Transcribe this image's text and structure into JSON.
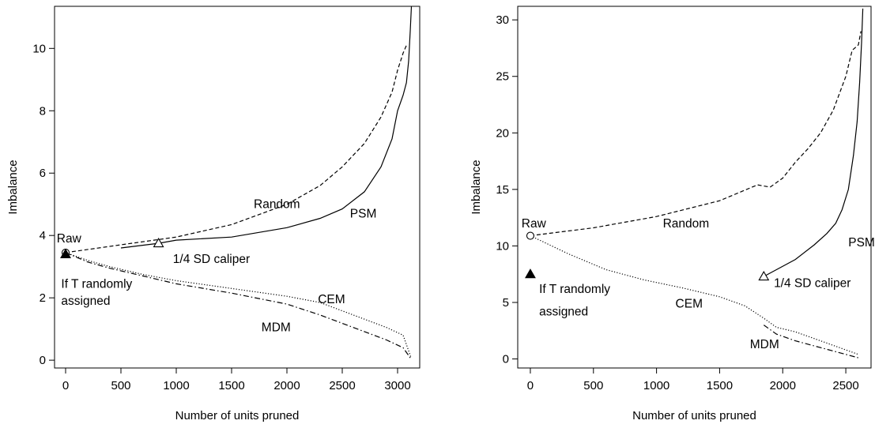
{
  "chart_data": [
    {
      "type": "line",
      "xlabel": "Number of units pruned",
      "ylabel": "Imbalance",
      "xlim": [
        -100,
        3200
      ],
      "ylim": [
        -0.25,
        11.35
      ],
      "xticks": [
        0,
        500,
        1000,
        1500,
        2000,
        2500,
        3000
      ],
      "yticks": [
        0,
        2,
        4,
        6,
        8,
        10
      ],
      "series": [
        {
          "label": "Random",
          "dash": "dashed",
          "x": [
            0,
            500,
            1000,
            1500,
            2000,
            2300,
            2500,
            2700,
            2850,
            2950,
            3000,
            3050,
            3080
          ],
          "y": [
            3.45,
            3.7,
            3.95,
            4.35,
            5.0,
            5.6,
            6.2,
            6.95,
            7.8,
            8.6,
            9.3,
            9.85,
            10.1
          ]
        },
        {
          "label": "PSM",
          "dash": "solid",
          "x": [
            500,
            840,
            1000,
            1500,
            2000,
            2300,
            2500,
            2700,
            2850,
            2950,
            3000,
            3050,
            3080,
            3100,
            3115,
            3125
          ],
          "y": [
            3.6,
            3.75,
            3.85,
            3.95,
            4.25,
            4.55,
            4.85,
            5.4,
            6.2,
            7.1,
            8.0,
            8.5,
            8.9,
            9.6,
            10.6,
            11.35
          ]
        },
        {
          "label": "CEM",
          "dash": "dotted",
          "x": [
            0,
            200,
            400,
            700,
            1000,
            1500,
            2000,
            2300,
            2600,
            2900,
            3050,
            3120
          ],
          "y": [
            3.45,
            3.2,
            3.0,
            2.75,
            2.55,
            2.3,
            2.05,
            1.85,
            1.45,
            1.05,
            0.8,
            0.1
          ]
        },
        {
          "label": "MDM",
          "dash": "dotdash",
          "x": [
            0,
            200,
            400,
            700,
            1000,
            1500,
            2000,
            2300,
            2600,
            2900,
            3050,
            3120
          ],
          "y": [
            3.45,
            3.15,
            2.95,
            2.7,
            2.45,
            2.15,
            1.8,
            1.45,
            1.05,
            0.65,
            0.4,
            0.05
          ]
        }
      ],
      "markers": [
        {
          "shape": "circle-open",
          "x": 0,
          "y": 3.45
        },
        {
          "shape": "triangle-filled",
          "x": 0,
          "y": 3.4
        },
        {
          "shape": "triangle-open",
          "x": 840,
          "y": 3.75
        }
      ],
      "annotations": [
        {
          "text": "Raw",
          "x": -80,
          "y": 3.9
        },
        {
          "text": "1/4 SD caliper",
          "x": 970,
          "y": 3.25
        },
        {
          "text": "If T randomly",
          "x": -40,
          "y": 2.45
        },
        {
          "text": "assigned",
          "x": -40,
          "y": 1.9
        },
        {
          "text": "Random",
          "x": 1700,
          "y": 5.0
        },
        {
          "text": "PSM",
          "x": 2570,
          "y": 4.7
        },
        {
          "text": "CEM",
          "x": 2280,
          "y": 1.95
        },
        {
          "text": "MDM",
          "x": 1770,
          "y": 1.05
        }
      ]
    },
    {
      "type": "line",
      "xlabel": "Number of units pruned",
      "ylabel": "Imbalance",
      "xlim": [
        -100,
        2700
      ],
      "ylim": [
        -0.8,
        31.2
      ],
      "xticks": [
        0,
        500,
        1000,
        1500,
        2000,
        2500
      ],
      "yticks": [
        0,
        5,
        10,
        15,
        20,
        25,
        30
      ],
      "series": [
        {
          "label": "Random",
          "dash": "dashed",
          "x": [
            0,
            500,
            1000,
            1500,
            1800,
            1900,
            2000,
            2100,
            2200,
            2300,
            2400,
            2500,
            2550,
            2600,
            2620
          ],
          "y": [
            10.9,
            11.6,
            12.6,
            14.0,
            15.4,
            15.2,
            16.0,
            17.4,
            18.6,
            20.0,
            22.0,
            25.0,
            27.3,
            27.8,
            29.0
          ]
        },
        {
          "label": "PSM",
          "dash": "solid",
          "x": [
            1850,
            1950,
            2100,
            2250,
            2350,
            2420,
            2470,
            2520,
            2560,
            2590,
            2610,
            2625,
            2635
          ],
          "y": [
            7.3,
            7.9,
            8.8,
            10.1,
            11.1,
            12.0,
            13.2,
            15.0,
            18.0,
            21.0,
            24.5,
            28.0,
            31.0
          ]
        },
        {
          "label": "CEM",
          "dash": "dotted",
          "x": [
            0,
            300,
            600,
            900,
            1200,
            1500,
            1700,
            1850,
            1950,
            2100,
            2300,
            2500,
            2600
          ],
          "y": [
            10.9,
            9.3,
            7.9,
            7.0,
            6.3,
            5.5,
            4.7,
            3.6,
            2.8,
            2.4,
            1.6,
            0.8,
            0.4
          ]
        },
        {
          "label": "MDM",
          "dash": "dotdash",
          "x": [
            1850,
            1950,
            2100,
            2300,
            2500,
            2600
          ],
          "y": [
            3.0,
            2.2,
            1.6,
            1.0,
            0.4,
            0.1
          ]
        }
      ],
      "markers": [
        {
          "shape": "circle-open",
          "x": 0,
          "y": 10.9
        },
        {
          "shape": "triangle-filled",
          "x": 0,
          "y": 7.5
        },
        {
          "shape": "triangle-open",
          "x": 1850,
          "y": 7.3
        }
      ],
      "annotations": [
        {
          "text": "Raw",
          "x": -70,
          "y": 12.0
        },
        {
          "text": "Random",
          "x": 1050,
          "y": 12.0
        },
        {
          "text": "PSM",
          "x": 2520,
          "y": 10.3
        },
        {
          "text": "1/4 SD caliper",
          "x": 1930,
          "y": 6.7
        },
        {
          "text": "If T randomly",
          "x": 70,
          "y": 6.2
        },
        {
          "text": "assigned",
          "x": 70,
          "y": 4.2
        },
        {
          "text": "CEM",
          "x": 1150,
          "y": 4.9
        },
        {
          "text": "MDM",
          "x": 1740,
          "y": 1.3
        }
      ]
    }
  ]
}
